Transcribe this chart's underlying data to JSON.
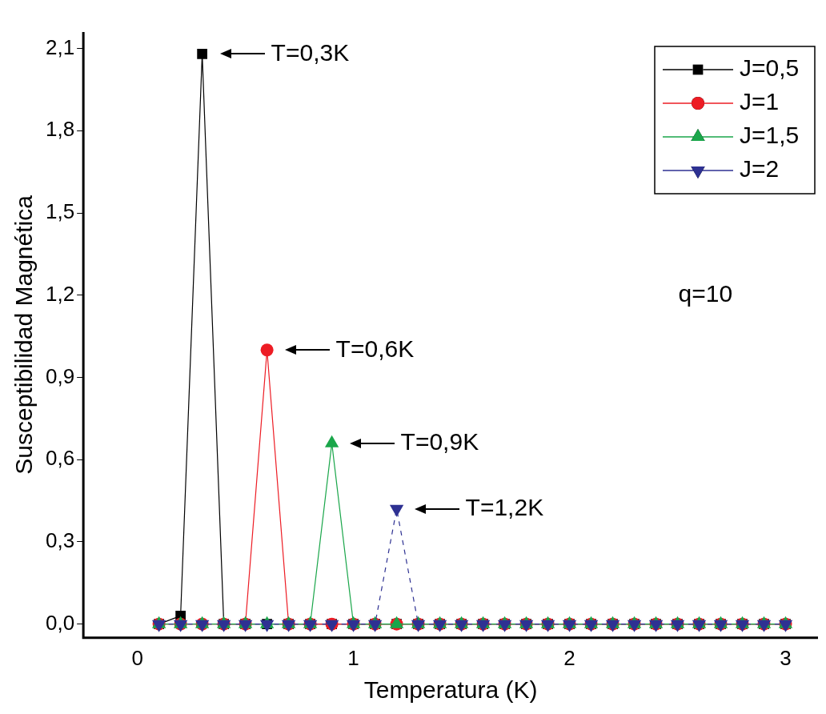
{
  "chart_data": {
    "type": "line",
    "xlabel": "Temperatura (K)",
    "ylabel": "Susceptibilidad Magnética",
    "x": [
      0.1,
      0.2,
      0.3,
      0.4,
      0.5,
      0.6,
      0.7,
      0.8,
      0.9,
      1.0,
      1.1,
      1.2,
      1.3,
      1.4,
      1.5,
      1.6,
      1.7,
      1.8,
      1.9,
      2.0,
      2.1,
      2.2,
      2.3,
      2.4,
      2.5,
      2.6,
      2.7,
      2.8,
      2.9,
      3.0
    ],
    "series": [
      {
        "name": "J=0,5",
        "color": "#000000",
        "marker": "square",
        "values": [
          0,
          0.03,
          2.08,
          0,
          0,
          0,
          0,
          0,
          0,
          0,
          0,
          0,
          0,
          0,
          0,
          0,
          0,
          0,
          0,
          0,
          0,
          0,
          0,
          0,
          0,
          0,
          0,
          0,
          0,
          0
        ]
      },
      {
        "name": "J=1",
        "color": "#ed1c24",
        "marker": "circle",
        "values": [
          0,
          0,
          0,
          0,
          0,
          1.0,
          0,
          0,
          0,
          0,
          0,
          0,
          0,
          0,
          0,
          0,
          0,
          0,
          0,
          0,
          0,
          0,
          0,
          0,
          0,
          0,
          0,
          0,
          0,
          0
        ]
      },
      {
        "name": "J=1,5",
        "color": "#1aa64a",
        "marker": "triangle",
        "values": [
          0,
          0,
          0,
          0,
          0,
          0,
          0,
          0,
          0.66,
          0,
          0,
          0,
          0,
          0,
          0,
          0,
          0,
          0,
          0,
          0,
          0,
          0,
          0,
          0,
          0,
          0,
          0,
          0,
          0,
          0
        ]
      },
      {
        "name": "J=2",
        "color": "#2e3192",
        "marker": "triangle-down",
        "line_style": "dashed",
        "values": [
          0,
          0,
          0,
          0,
          0,
          0,
          0,
          0,
          0,
          0,
          0,
          0.42,
          0,
          0,
          0,
          0,
          0,
          0,
          0,
          0,
          0,
          0,
          0,
          0,
          0,
          0,
          0,
          0,
          0,
          0
        ]
      }
    ],
    "xlim": [
      -0.25,
      3.15
    ],
    "xticks": [
      0,
      1,
      2,
      3
    ],
    "ylim": [
      -0.05,
      2.16
    ],
    "yticks": [
      {
        "value": 0,
        "label": "0,0"
      },
      {
        "value": 0.3,
        "label": "0,3"
      },
      {
        "value": 0.6,
        "label": "0,6"
      },
      {
        "value": 0.9,
        "label": "0,9"
      },
      {
        "value": 1.2,
        "label": "1,2"
      },
      {
        "value": 1.5,
        "label": "1,5"
      },
      {
        "value": 1.8,
        "label": "1,8"
      },
      {
        "value": 2.1,
        "label": "2,1"
      }
    ],
    "grid": false,
    "legend": "top right",
    "annotations": [
      {
        "text": "T=0,3K",
        "x": 0.3,
        "y": 2.08
      },
      {
        "text": "T=0,6K",
        "x": 0.6,
        "y": 1.0
      },
      {
        "text": "T=0,9K",
        "x": 0.9,
        "y": 0.66
      },
      {
        "text": "T=1,2K",
        "x": 1.2,
        "y": 0.42
      },
      "q=10"
    ]
  }
}
